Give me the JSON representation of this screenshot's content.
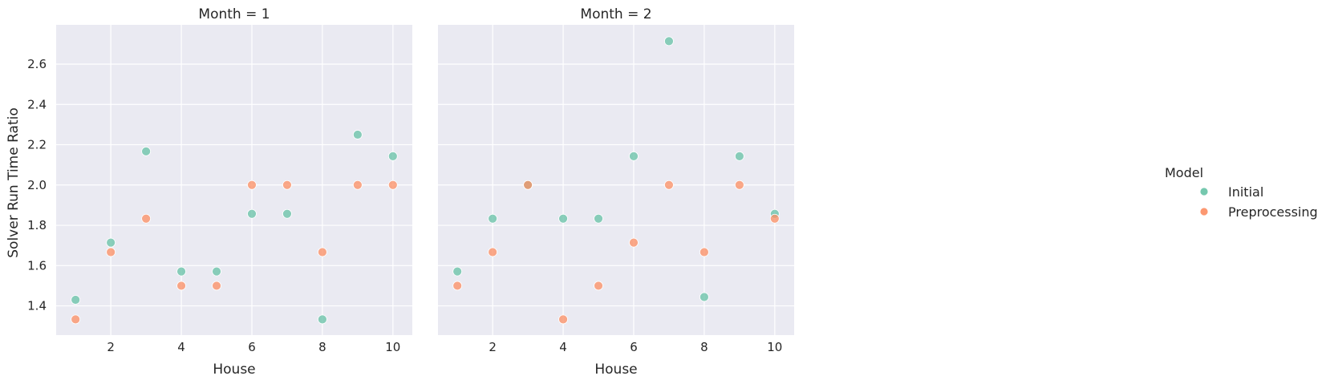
{
  "chart_data": {
    "type": "scatter",
    "xlabel": "House",
    "ylabel": "Solver Run Time Ratio",
    "xlim": [
      0.45,
      10.55
    ],
    "ylim": [
      1.255,
      2.795
    ],
    "xticks": [
      2,
      4,
      6,
      8,
      10
    ],
    "yticks": [
      1.4,
      1.6,
      1.8,
      2.0,
      2.2,
      2.4,
      2.6
    ],
    "ytick_labels": [
      "1.4",
      "1.6",
      "1.8",
      "2.0",
      "2.2",
      "2.4",
      "2.6"
    ],
    "grid": true,
    "legend": {
      "title": "Model",
      "placement": "right",
      "entries": [
        {
          "label": "Initial",
          "color": "#66c2a5"
        },
        {
          "label": "Preprocessing",
          "color": "#fc8d62"
        }
      ]
    },
    "panels": [
      {
        "title": "Month = 1",
        "series": [
          {
            "name": "Initial",
            "color": "#66c2a5",
            "x": [
              1,
              2,
              3,
              4,
              5,
              6,
              7,
              8,
              9,
              10
            ],
            "y": [
              1.43,
              1.714,
              2.167,
              1.571,
              1.571,
              1.857,
              1.857,
              1.333,
              2.25,
              2.143
            ]
          },
          {
            "name": "Preprocessing",
            "color": "#fc8d62",
            "x": [
              1,
              2,
              3,
              4,
              5,
              6,
              7,
              8,
              9,
              10
            ],
            "y": [
              1.333,
              1.667,
              1.833,
              1.5,
              1.5,
              2.0,
              2.0,
              1.667,
              2.0,
              2.0
            ]
          }
        ]
      },
      {
        "title": "Month = 2",
        "series": [
          {
            "name": "Initial",
            "color": "#66c2a5",
            "x": [
              1,
              2,
              3,
              4,
              5,
              6,
              7,
              8,
              9,
              10
            ],
            "y": [
              1.571,
              1.833,
              2.0,
              1.833,
              1.833,
              2.143,
              2.714,
              1.444,
              2.143,
              1.857
            ]
          },
          {
            "name": "Preprocessing",
            "color": "#fc8d62",
            "x": [
              1,
              2,
              3,
              4,
              5,
              6,
              7,
              8,
              9,
              10
            ],
            "y": [
              1.5,
              1.667,
              2.0,
              1.333,
              1.5,
              1.714,
              2.0,
              1.667,
              2.0,
              1.833
            ]
          }
        ]
      }
    ]
  }
}
